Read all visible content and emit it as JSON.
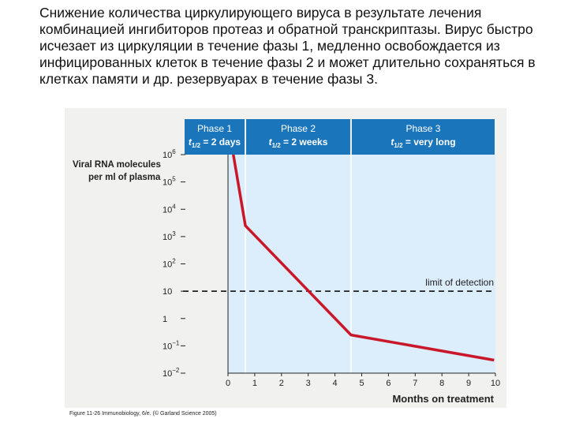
{
  "slide_text": "Снижение количества циркулирующего вируса в результате лечения комбинацией ингибиторов протеаз и обратной транскриптазы. Вирус быстро исчезает из циркуляции в течение фазы 1, медленно освобождается из инфицированных клеток в течение фазы 2 и может длительно сохраняться в клетках памяти и др. резервуарах в течение фазы 3.",
  "caption": "Figure 11-26 Immunobiology, 6/e. (© Garland Science 2005)",
  "colors": {
    "line": "#c8182a",
    "phase_header": "#1a75bb",
    "plot_bg": "#dcedfb",
    "figure_bg": "#f1f1f0"
  },
  "chart_data": {
    "type": "line",
    "ylabel_line1": "Viral RNA molecules",
    "ylabel_line2": "per ml of plasma",
    "xlabel": "Months on treatment",
    "xlim": [
      0,
      10
    ],
    "ylim_log10": [
      -2,
      6
    ],
    "y_scale": "log",
    "x_ticks": [
      "0",
      "1",
      "2",
      "3",
      "4",
      "5",
      "6",
      "7",
      "8",
      "9",
      "10"
    ],
    "y_ticks": [
      {
        "base": "10",
        "exp": "6",
        "log": 6
      },
      {
        "base": "10",
        "exp": "5",
        "log": 5
      },
      {
        "base": "10",
        "exp": "4",
        "log": 4
      },
      {
        "base": "10",
        "exp": "3",
        "log": 3
      },
      {
        "base": "10",
        "exp": "2",
        "log": 2
      },
      {
        "base": "10",
        "exp": "",
        "log": 1
      },
      {
        "base": "1",
        "exp": "",
        "log": 0
      },
      {
        "base": "10",
        "exp": "−1",
        "log": -1
      },
      {
        "base": "10",
        "exp": "−2",
        "log": -2
      }
    ],
    "series": [
      {
        "x": [
          0.2,
          0.65,
          4.6,
          9.95
        ],
        "y": [
          1000000,
          2500,
          0.25,
          0.03
        ]
      }
    ],
    "detection_limit": {
      "y": 10,
      "label": "limit of detection"
    },
    "phases": [
      {
        "name": "Phase 1",
        "half_life_prefix": "t",
        "half_life_sub": "1/2",
        "half_life_value": "= 2 days",
        "x_start": 0,
        "x_end": 0.65
      },
      {
        "name": "Phase 2",
        "half_life_prefix": "t",
        "half_life_sub": "1/2",
        "half_life_value": "= 2 weeks",
        "x_start": 0.65,
        "x_end": 4.6
      },
      {
        "name": "Phase 3",
        "half_life_prefix": "t",
        "half_life_sub": "1/2",
        "half_life_value": "= very long",
        "x_start": 4.6,
        "x_end": 10
      }
    ]
  }
}
